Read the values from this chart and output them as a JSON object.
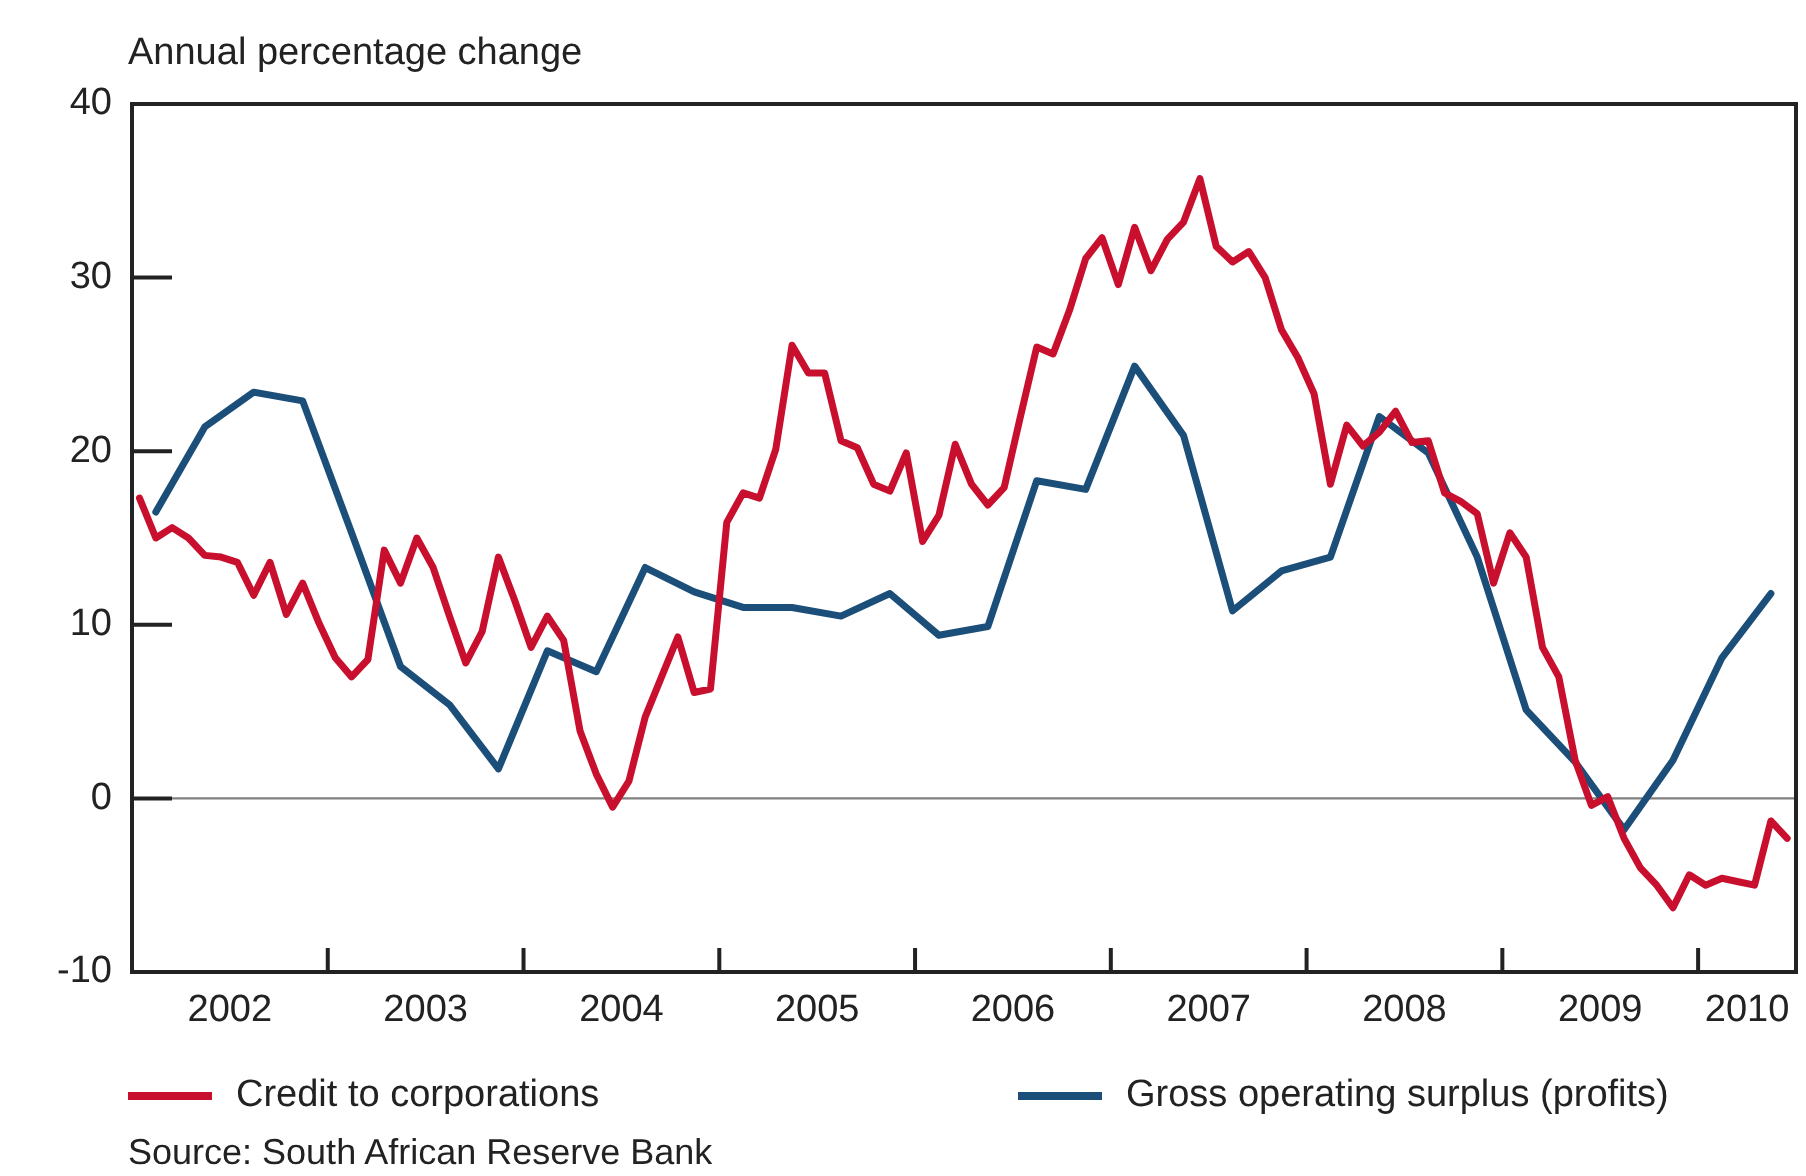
{
  "chart_data": {
    "type": "line",
    "ylabel": "Annual percentage change",
    "annotations": [
      "Source: South African Reserve Bank"
    ],
    "xlim": [
      "2002-01-01",
      "2010-07-01"
    ],
    "xticks": [
      {
        "value": "2002-07-01",
        "label": "2002"
      },
      {
        "value": "2003-01-01",
        "label": null
      },
      {
        "value": "2003-07-01",
        "label": "2003"
      },
      {
        "value": "2004-01-01",
        "label": null
      },
      {
        "value": "2004-07-01",
        "label": "2004"
      },
      {
        "value": "2005-01-01",
        "label": null
      },
      {
        "value": "2005-07-01",
        "label": "2005"
      },
      {
        "value": "2006-01-01",
        "label": null
      },
      {
        "value": "2006-07-01",
        "label": "2006"
      },
      {
        "value": "2007-01-01",
        "label": null
      },
      {
        "value": "2007-07-01",
        "label": "2007"
      },
      {
        "value": "2008-01-01",
        "label": null
      },
      {
        "value": "2008-07-01",
        "label": "2008"
      },
      {
        "value": "2009-01-01",
        "label": null
      },
      {
        "value": "2009-07-01",
        "label": "2009"
      },
      {
        "value": "2010-01-01",
        "label": null
      },
      {
        "value": "2010-04-01",
        "label": "2010"
      }
    ],
    "ylim": [
      -10,
      40
    ],
    "yticks": [
      -10,
      0,
      10,
      20,
      30,
      40
    ],
    "grid": false,
    "legend": "bottom",
    "marker": "none",
    "line_style": "solid",
    "ref_lines": [
      {
        "axis": "y",
        "value": 0,
        "color": "#808080"
      }
    ],
    "series": [
      {
        "name": "Credit to corporations",
        "color": "#c8102e",
        "x": [
          "2002-01-15",
          "2002-02-15",
          "2002-03-15",
          "2002-04-15",
          "2002-05-15",
          "2002-06-15",
          "2002-07-15",
          "2002-08-15",
          "2002-09-15",
          "2002-10-15",
          "2002-11-15",
          "2002-12-15",
          "2003-01-15",
          "2003-02-15",
          "2003-03-15",
          "2003-04-15",
          "2003-05-15",
          "2003-06-15",
          "2003-07-15",
          "2003-08-15",
          "2003-09-15",
          "2003-10-15",
          "2003-11-15",
          "2003-12-15",
          "2004-01-15",
          "2004-02-15",
          "2004-03-15",
          "2004-04-15",
          "2004-05-15",
          "2004-06-15",
          "2004-07-15",
          "2004-08-15",
          "2004-09-15",
          "2004-10-15",
          "2004-11-15",
          "2004-12-15",
          "2005-01-15",
          "2005-02-15",
          "2005-03-15",
          "2005-04-15",
          "2005-05-15",
          "2005-06-15",
          "2005-07-15",
          "2005-08-15",
          "2005-09-15",
          "2005-10-15",
          "2005-11-15",
          "2005-12-15",
          "2006-01-15",
          "2006-02-15",
          "2006-03-15",
          "2006-04-15",
          "2006-05-15",
          "2006-06-15",
          "2006-07-15",
          "2006-08-15",
          "2006-09-15",
          "2006-10-15",
          "2006-11-15",
          "2006-12-15",
          "2007-01-15",
          "2007-02-15",
          "2007-03-15",
          "2007-04-15",
          "2007-05-15",
          "2007-06-15",
          "2007-07-15",
          "2007-08-15",
          "2007-09-15",
          "2007-10-15",
          "2007-11-15",
          "2007-12-15",
          "2008-01-15",
          "2008-02-15",
          "2008-03-15",
          "2008-04-15",
          "2008-05-15",
          "2008-06-15",
          "2008-07-15",
          "2008-08-15",
          "2008-09-15",
          "2008-10-15",
          "2008-11-15",
          "2008-12-15",
          "2009-01-15",
          "2009-02-15",
          "2009-03-15",
          "2009-04-15",
          "2009-05-15",
          "2009-06-15",
          "2009-07-15",
          "2009-08-15",
          "2009-09-15",
          "2009-10-15",
          "2009-11-15",
          "2009-12-15",
          "2010-01-15",
          "2010-02-15",
          "2010-03-15",
          "2010-04-15",
          "2010-05-15",
          "2010-06-15"
        ],
        "values": [
          17.3,
          15.0,
          15.6,
          15.0,
          14.0,
          13.9,
          13.6,
          11.7,
          13.6,
          10.6,
          12.4,
          10.1,
          8.1,
          7.0,
          8.0,
          14.3,
          12.4,
          15.0,
          13.3,
          10.5,
          7.8,
          9.6,
          13.9,
          11.4,
          8.7,
          10.5,
          9.1,
          3.9,
          1.4,
          -0.5,
          1.0,
          4.7,
          7.0,
          9.3,
          6.1,
          6.3,
          15.9,
          17.6,
          17.3,
          20.1,
          26.1,
          24.5,
          24.5,
          20.6,
          20.2,
          18.1,
          17.7,
          19.9,
          14.8,
          16.3,
          20.4,
          18.1,
          16.9,
          17.9,
          22.0,
          26.0,
          25.6,
          28.1,
          31.1,
          32.3,
          29.6,
          32.9,
          30.4,
          32.2,
          33.2,
          35.7,
          31.8,
          30.9,
          31.5,
          30.0,
          27.0,
          25.4,
          23.3,
          18.1,
          21.5,
          20.3,
          21.1,
          22.3,
          20.5,
          20.6,
          17.6,
          17.1,
          16.4,
          12.4,
          15.3,
          13.9,
          8.7,
          7.0,
          2.2,
          -0.4,
          0.1,
          -2.3,
          -4.0,
          -5.0,
          -6.3,
          -4.4,
          -5.0,
          -4.6,
          -4.8,
          -5.0,
          -1.3,
          -2.3
        ]
      },
      {
        "name": "Gross operating surplus (profits)",
        "color": "#1b4f7a",
        "x": [
          "2002-02-15",
          "2002-05-15",
          "2002-08-15",
          "2002-11-15",
          "2003-02-15",
          "2003-05-15",
          "2003-08-15",
          "2003-11-15",
          "2004-02-15",
          "2004-05-15",
          "2004-08-15",
          "2004-11-15",
          "2005-02-15",
          "2005-05-15",
          "2005-08-15",
          "2005-11-15",
          "2006-02-15",
          "2006-05-15",
          "2006-08-15",
          "2006-11-15",
          "2007-02-15",
          "2007-05-15",
          "2007-08-15",
          "2007-11-15",
          "2008-02-15",
          "2008-05-15",
          "2008-08-15",
          "2008-11-15",
          "2009-02-15",
          "2009-05-15",
          "2009-08-15",
          "2009-11-15",
          "2010-02-15",
          "2010-05-15"
        ],
        "values": [
          16.5,
          21.4,
          23.4,
          22.9,
          15.3,
          7.6,
          5.4,
          1.7,
          8.5,
          7.3,
          13.3,
          11.9,
          11.0,
          11.0,
          10.5,
          11.8,
          9.4,
          9.9,
          18.3,
          17.8,
          24.9,
          20.9,
          10.8,
          13.1,
          13.9,
          22.0,
          19.9,
          13.9,
          5.1,
          2.1,
          -1.8,
          2.2,
          8.1,
          11.8
        ]
      }
    ]
  }
}
